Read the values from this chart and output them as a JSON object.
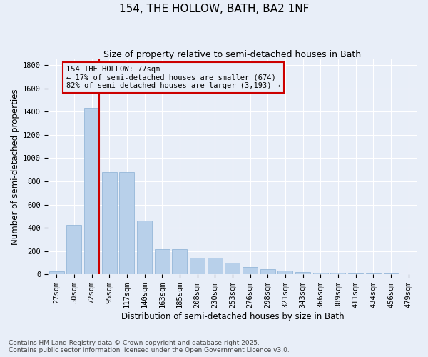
{
  "title": "154, THE HOLLOW, BATH, BA2 1NF",
  "subtitle": "Size of property relative to semi-detached houses in Bath",
  "xlabel": "Distribution of semi-detached houses by size in Bath",
  "ylabel": "Number of semi-detached properties",
  "categories": [
    "27sqm",
    "50sqm",
    "72sqm",
    "95sqm",
    "117sqm",
    "140sqm",
    "163sqm",
    "185sqm",
    "208sqm",
    "230sqm",
    "253sqm",
    "276sqm",
    "298sqm",
    "321sqm",
    "343sqm",
    "366sqm",
    "389sqm",
    "411sqm",
    "434sqm",
    "456sqm",
    "479sqm"
  ],
  "values": [
    25,
    425,
    1430,
    880,
    880,
    465,
    215,
    215,
    145,
    145,
    100,
    60,
    42,
    32,
    22,
    14,
    11,
    9,
    7,
    7,
    4
  ],
  "bar_color": "#b8d0ea",
  "bar_edge_color": "#8ab0d4",
  "background_color": "#e8eef8",
  "grid_color": "#ffffff",
  "property_label": "154 THE HOLLOW: 77sqm",
  "annotation_line1": "← 17% of semi-detached houses are smaller (674)",
  "annotation_line2": "82% of semi-detached houses are larger (3,193) →",
  "red_line_color": "#cc0000",
  "ylim": [
    0,
    1850
  ],
  "yticks": [
    0,
    200,
    400,
    600,
    800,
    1000,
    1200,
    1400,
    1600,
    1800
  ],
  "footnote1": "Contains HM Land Registry data © Crown copyright and database right 2025.",
  "footnote2": "Contains public sector information licensed under the Open Government Licence v3.0.",
  "title_fontsize": 11,
  "subtitle_fontsize": 9,
  "axis_label_fontsize": 8.5,
  "tick_fontsize": 7.5,
  "annotation_fontsize": 7.5,
  "footnote_fontsize": 6.5
}
